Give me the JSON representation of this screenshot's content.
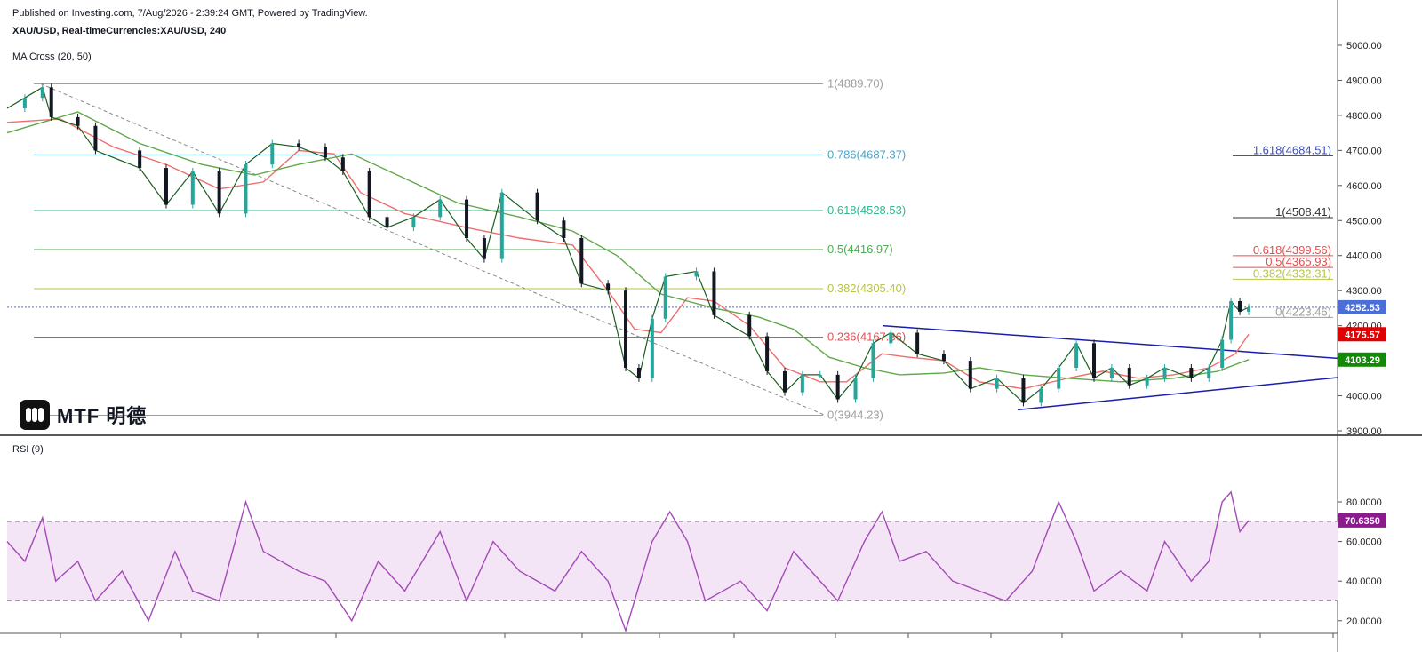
{
  "header": {
    "published": "Published on Investing.com, 7/Aug/2026 - 2:39:24 GMT, Powered by TradingView.",
    "symbol": "XAU/USD, Real-timeCurrencies:XAU/USD, 240",
    "ma_label": "MA Cross (20, 50)",
    "rsi_label": "RSI (9)"
  },
  "logo": {
    "text": "MTF 明德",
    "icon": "mtf-logo-icon"
  },
  "colors": {
    "up": "#26a69a",
    "down": "#131722",
    "ma20": "#ef6d6d",
    "ma50": "#62a84a",
    "rsi": "#a44ab8",
    "rsi_band": "#f3e5f5",
    "trend": "#1a1fa8",
    "price_badge": "#4a6fd6",
    "ma20_badge": "#e00000",
    "ma50_badge": "#138a07",
    "rsi_badge": "#8b1b8d"
  },
  "chart_data": [
    {
      "type": "line",
      "title": "XAU/USD, 240",
      "ylim": [
        3900,
        5000
      ],
      "y_ticks": [
        "5000.00",
        "4900.00",
        "4800.00",
        "4700.00",
        "4600.00",
        "4500.00",
        "4400.00",
        "4300.00",
        "4200.00",
        "4100.00",
        "4000.00",
        "3900.00"
      ],
      "series": [
        {
          "name": "Price",
          "points": [
            [
              0,
              4820
            ],
            [
              20,
              4850
            ],
            [
              40,
              4880
            ],
            [
              50,
              4795
            ],
            [
              80,
              4770
            ],
            [
              100,
              4700
            ],
            [
              150,
              4650
            ],
            [
              180,
              4545
            ],
            [
              210,
              4640
            ],
            [
              240,
              4520
            ],
            [
              270,
              4660
            ],
            [
              300,
              4720
            ],
            [
              330,
              4710
            ],
            [
              360,
              4680
            ],
            [
              380,
              4640
            ],
            [
              410,
              4510
            ],
            [
              430,
              4480
            ],
            [
              460,
              4510
            ],
            [
              490,
              4560
            ],
            [
              520,
              4450
            ],
            [
              540,
              4390
            ],
            [
              560,
              4580
            ],
            [
              600,
              4500
            ],
            [
              630,
              4450
            ],
            [
              650,
              4320
            ],
            [
              680,
              4300
            ],
            [
              700,
              4080
            ],
            [
              715,
              4050
            ],
            [
              730,
              4220
            ],
            [
              745,
              4340
            ],
            [
              780,
              4355
            ],
            [
              800,
              4230
            ],
            [
              840,
              4170
            ],
            [
              860,
              4070
            ],
            [
              880,
              4010
            ],
            [
              900,
              4060
            ],
            [
              920,
              4060
            ],
            [
              940,
              3990
            ],
            [
              960,
              4050
            ],
            [
              980,
              4150
            ],
            [
              1000,
              4180
            ],
            [
              1030,
              4120
            ],
            [
              1060,
              4100
            ],
            [
              1090,
              4020
            ],
            [
              1120,
              4050
            ],
            [
              1150,
              3980
            ],
            [
              1170,
              4020
            ],
            [
              1190,
              4080
            ],
            [
              1210,
              4150
            ],
            [
              1230,
              4050
            ],
            [
              1250,
              4080
            ],
            [
              1270,
              4030
            ],
            [
              1290,
              4050
            ],
            [
              1310,
              4080
            ],
            [
              1340,
              4050
            ],
            [
              1360,
              4080
            ],
            [
              1375,
              4160
            ],
            [
              1385,
              4270
            ],
            [
              1395,
              4240
            ],
            [
              1405,
              4252.53
            ]
          ]
        },
        {
          "name": "MA 20",
          "points": [
            [
              0,
              4780
            ],
            [
              60,
              4790
            ],
            [
              120,
              4710
            ],
            [
              180,
              4660
            ],
            [
              240,
              4590
            ],
            [
              290,
              4610
            ],
            [
              330,
              4700
            ],
            [
              370,
              4690
            ],
            [
              400,
              4580
            ],
            [
              450,
              4520
            ],
            [
              520,
              4480
            ],
            [
              580,
              4450
            ],
            [
              640,
              4430
            ],
            [
              680,
              4300
            ],
            [
              710,
              4190
            ],
            [
              740,
              4180
            ],
            [
              770,
              4280
            ],
            [
              800,
              4270
            ],
            [
              840,
              4200
            ],
            [
              880,
              4080
            ],
            [
              920,
              4040
            ],
            [
              950,
              4040
            ],
            [
              990,
              4120
            ],
            [
              1020,
              4110
            ],
            [
              1060,
              4100
            ],
            [
              1100,
              4040
            ],
            [
              1150,
              4020
            ],
            [
              1200,
              4050
            ],
            [
              1240,
              4070
            ],
            [
              1280,
              4050
            ],
            [
              1320,
              4060
            ],
            [
              1360,
              4080
            ],
            [
              1390,
              4120
            ],
            [
              1405,
              4175.57
            ]
          ]
        },
        {
          "name": "MA 50",
          "points": [
            [
              0,
              4750
            ],
            [
              80,
              4810
            ],
            [
              150,
              4720
            ],
            [
              220,
              4660
            ],
            [
              280,
              4630
            ],
            [
              330,
              4660
            ],
            [
              390,
              4690
            ],
            [
              450,
              4620
            ],
            [
              510,
              4550
            ],
            [
              580,
              4510
            ],
            [
              640,
              4470
            ],
            [
              690,
              4400
            ],
            [
              740,
              4290
            ],
            [
              800,
              4250
            ],
            [
              850,
              4225
            ],
            [
              890,
              4190
            ],
            [
              930,
              4110
            ],
            [
              970,
              4080
            ],
            [
              1010,
              4060
            ],
            [
              1060,
              4065
            ],
            [
              1100,
              4080
            ],
            [
              1150,
              4060
            ],
            [
              1200,
              4050
            ],
            [
              1260,
              4040
            ],
            [
              1320,
              4050
            ],
            [
              1370,
              4070
            ],
            [
              1405,
              4103.29
            ]
          ]
        }
      ],
      "fibonacci_left": [
        {
          "label": "1(4889.70)",
          "value": 4889.7,
          "color": "#9e9e9e"
        },
        {
          "label": "0.786(4687.37)",
          "value": 4687.37,
          "color": "#4aa3c9"
        },
        {
          "label": "0.618(4528.53)",
          "value": 4528.53,
          "color": "#32b890"
        },
        {
          "label": "0.5(4416.97)",
          "value": 4416.97,
          "color": "#4caf50"
        },
        {
          "label": "0.382(4305.40)",
          "value": 4305.4,
          "color": "#b8c44b"
        },
        {
          "label": "0.236(4167.36)",
          "value": 4167.36,
          "color": "#e05050"
        },
        {
          "label": "0(3944.23)",
          "value": 3944.23,
          "color": "#9e9e9e"
        }
      ],
      "fibonacci_right": [
        {
          "label": "1.618(4684.51)",
          "value": 4684.51,
          "color": "#3f51b5"
        },
        {
          "label": "1(4508.41)",
          "value": 4508.41,
          "color": "#333333"
        },
        {
          "label": "0.618(4399.56)",
          "value": 4399.56,
          "color": "#e05050"
        },
        {
          "label": "0.5(4365.93)",
          "value": 4365.93,
          "color": "#e05050"
        },
        {
          "label": "0.382(4332.31)",
          "value": 4332.31,
          "color": "#b8c44b"
        },
        {
          "label": "0(4223.46)",
          "value": 4223.46,
          "color": "#9e9e9e"
        }
      ],
      "badges": [
        {
          "label": "4252.53",
          "value": 4252.53,
          "color": "#4a6fd6"
        },
        {
          "label": "4175.57",
          "value": 4175.57,
          "color": "#e00000"
        },
        {
          "label": "4103.29",
          "value": 4103.29,
          "color": "#138a07"
        }
      ]
    },
    {
      "type": "line",
      "title": "RSI (9)",
      "ylim": [
        10,
        90
      ],
      "y_ticks": [
        "80.0000",
        "60.0000",
        "40.0000",
        "20.0000"
      ],
      "levels": [
        70,
        30
      ],
      "series": [
        {
          "name": "RSI",
          "points": [
            [
              0,
              60
            ],
            [
              20,
              50
            ],
            [
              40,
              72
            ],
            [
              55,
              40
            ],
            [
              80,
              50
            ],
            [
              100,
              30
            ],
            [
              130,
              45
            ],
            [
              160,
              20
            ],
            [
              190,
              55
            ],
            [
              210,
              35
            ],
            [
              240,
              30
            ],
            [
              270,
              80
            ],
            [
              290,
              55
            ],
            [
              330,
              45
            ],
            [
              360,
              40
            ],
            [
              390,
              20
            ],
            [
              420,
              50
            ],
            [
              450,
              35
            ],
            [
              490,
              65
            ],
            [
              520,
              30
            ],
            [
              550,
              60
            ],
            [
              580,
              45
            ],
            [
              620,
              35
            ],
            [
              650,
              55
            ],
            [
              680,
              40
            ],
            [
              700,
              15
            ],
            [
              730,
              60
            ],
            [
              750,
              75
            ],
            [
              770,
              60
            ],
            [
              790,
              30
            ],
            [
              830,
              40
            ],
            [
              860,
              25
            ],
            [
              890,
              55
            ],
            [
              910,
              45
            ],
            [
              940,
              30
            ],
            [
              970,
              60
            ],
            [
              990,
              75
            ],
            [
              1010,
              50
            ],
            [
              1040,
              55
            ],
            [
              1070,
              40
            ],
            [
              1100,
              35
            ],
            [
              1130,
              30
            ],
            [
              1160,
              45
            ],
            [
              1190,
              80
            ],
            [
              1210,
              60
            ],
            [
              1230,
              35
            ],
            [
              1260,
              45
            ],
            [
              1290,
              35
            ],
            [
              1310,
              60
            ],
            [
              1340,
              40
            ],
            [
              1360,
              50
            ],
            [
              1375,
              80
            ],
            [
              1385,
              85
            ],
            [
              1395,
              65
            ],
            [
              1405,
              70.635
            ]
          ]
        }
      ],
      "badges": [
        {
          "label": "70.6350",
          "value": 70.635,
          "color": "#8b1b8d"
        }
      ]
    }
  ]
}
